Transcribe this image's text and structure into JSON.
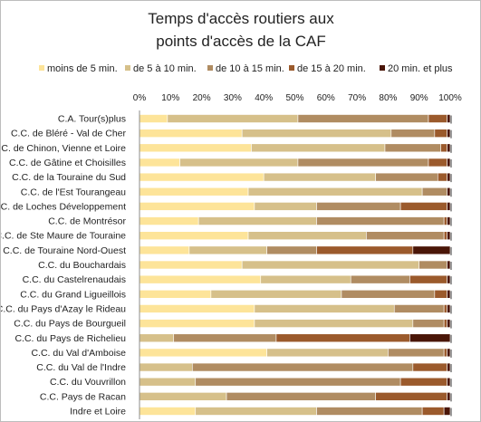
{
  "chart_data": {
    "type": "bar",
    "orientation": "horizontal",
    "stacked": "percent",
    "title": [
      "Temps d'accès routiers aux",
      "points d'accès de la CAF"
    ],
    "legend_position": "top",
    "xlim": [
      0,
      100
    ],
    "x_ticks": [
      "0%",
      "10%",
      "20%",
      "30%",
      "40%",
      "50%",
      "60%",
      "70%",
      "80%",
      "90%",
      "100%"
    ],
    "grid": false,
    "categories": [
      "C.A. Tour(s)plus",
      "C.C. de Bléré - Val de Cher",
      "C.C. de Chinon, Vienne et Loire",
      "C.C. de Gâtine et Choisilles",
      "C.C. de la Touraine du Sud",
      "C.C. de l'Est Tourangeau",
      "C.C. de Loches Développement",
      "C.C. de Montrésor",
      "C.C. de Ste Maure de Touraine",
      "C.C. de Touraine Nord-Ouest",
      "C.C. du Bouchardais",
      "C.C. du Castelrenaudais",
      "C.C. du Grand Ligueillois",
      "C.C. du Pays d'Azay le Rideau",
      "C.C. du Pays de Bourgueil",
      "C.C. du Pays de Richelieu",
      "C.C. du Val d'Amboise",
      "C.C. du Val de l'Indre",
      "C.C. du Vouvrillon",
      "C.C. Pays de Racan",
      "Indre et Loire"
    ],
    "series": [
      {
        "name": "moins de 5 min.",
        "color": "#fde499",
        "values": [
          9,
          33,
          36,
          13,
          40,
          35,
          37,
          19,
          35,
          16,
          33,
          39,
          23,
          37,
          37,
          0,
          41,
          0,
          0,
          0,
          18
        ]
      },
      {
        "name": "de 5 à 10 min.",
        "color": "#d6c08a",
        "values": [
          42,
          48,
          43,
          38,
          36,
          56,
          20,
          38,
          38,
          25,
          57,
          29,
          42,
          45,
          51,
          11,
          39,
          17,
          18,
          28,
          39
        ]
      },
      {
        "name": "de 10 à 15 min.",
        "color": "#b08c62",
        "values": [
          42,
          14,
          18,
          42,
          20,
          8,
          27,
          41,
          25,
          16,
          9,
          19,
          30,
          16,
          10,
          33,
          18,
          71,
          66,
          48,
          34
        ]
      },
      {
        "name": "de 15 à 20 min.",
        "color": "#9b5a2c",
        "values": [
          6,
          4,
          2,
          6,
          3,
          0,
          15,
          1,
          1,
          31,
          0,
          12,
          4,
          1,
          1,
          43,
          1,
          11,
          15,
          23,
          7
        ]
      },
      {
        "name": "20 min. et plus",
        "color": "#4a1608",
        "values": [
          1,
          1,
          1,
          1,
          1,
          1,
          1,
          1,
          1,
          12,
          1,
          1,
          1,
          1,
          1,
          13,
          1,
          1,
          1,
          1,
          2
        ]
      }
    ]
  }
}
